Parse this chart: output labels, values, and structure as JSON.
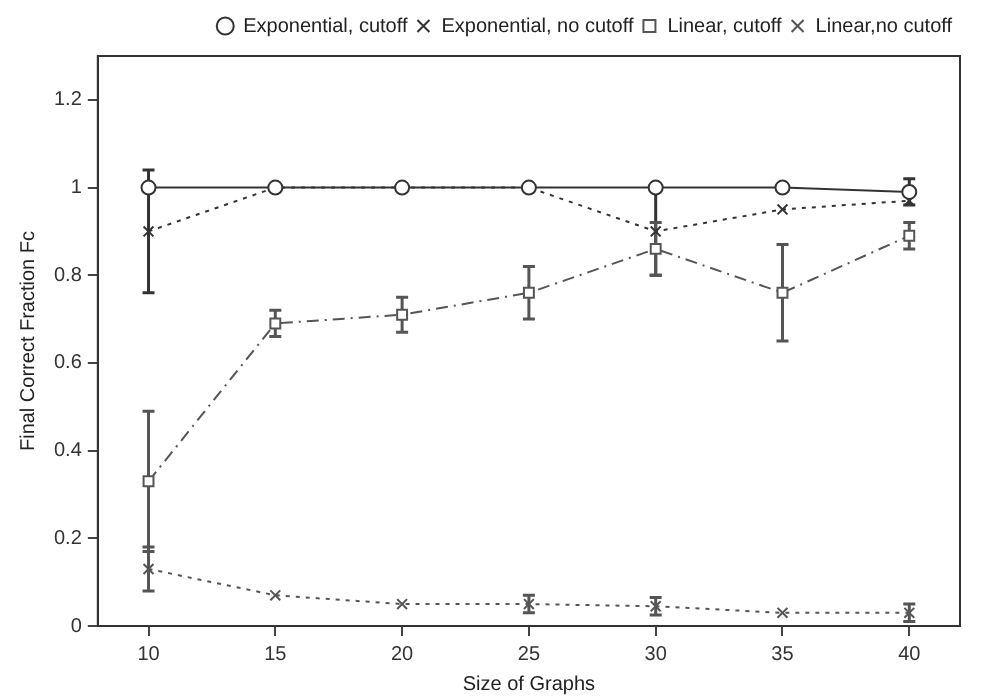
{
  "chart_data": {
    "type": "line",
    "xlabel": "Size of Graphs",
    "ylabel": "Final Correct Fraction Fc",
    "x": [
      10,
      15,
      20,
      25,
      30,
      35,
      40
    ],
    "xlim": [
      8,
      42
    ],
    "xticks": [
      10,
      15,
      20,
      25,
      30,
      35,
      40
    ],
    "ylim": [
      0,
      1.3
    ],
    "yticks": [
      0,
      0.2,
      0.4,
      0.6,
      0.8,
      1,
      1.2
    ],
    "grid": false,
    "legend": "top right",
    "series": [
      {
        "name": "Exponential, cutoff",
        "color": "#333333",
        "marker": "circle",
        "line_style": "solid",
        "values": [
          1,
          1,
          1,
          1,
          1,
          1,
          0.99
        ],
        "errors": [
          null,
          null,
          null,
          null,
          null,
          null,
          0.03
        ]
      },
      {
        "name": "Exponential, no cutoff",
        "color": "#333333",
        "marker": "cross",
        "line_style": "dotted",
        "values": [
          0.9,
          1,
          1,
          1,
          0.9,
          0.95,
          0.97
        ],
        "errors": [
          0.14,
          null,
          null,
          null,
          0.1,
          null,
          null
        ]
      },
      {
        "name": "Linear, cutoff",
        "color": "#555555",
        "marker": "square",
        "line_style": "dashed",
        "values": [
          0.33,
          0.69,
          0.71,
          0.76,
          0.86,
          0.76,
          0.89
        ],
        "errors": [
          0.16,
          0.03,
          0.04,
          0.06,
          0.06,
          0.11,
          0.03
        ]
      },
      {
        "name": "Linear,no cutoff",
        "color": "#555555",
        "marker": "cross",
        "line_style": "dotted",
        "values": [
          0.13,
          0.07,
          0.05,
          0.05,
          0.045,
          0.03,
          0.03
        ],
        "errors": [
          0.05,
          null,
          null,
          0.02,
          0.02,
          null,
          0.02
        ]
      }
    ]
  }
}
